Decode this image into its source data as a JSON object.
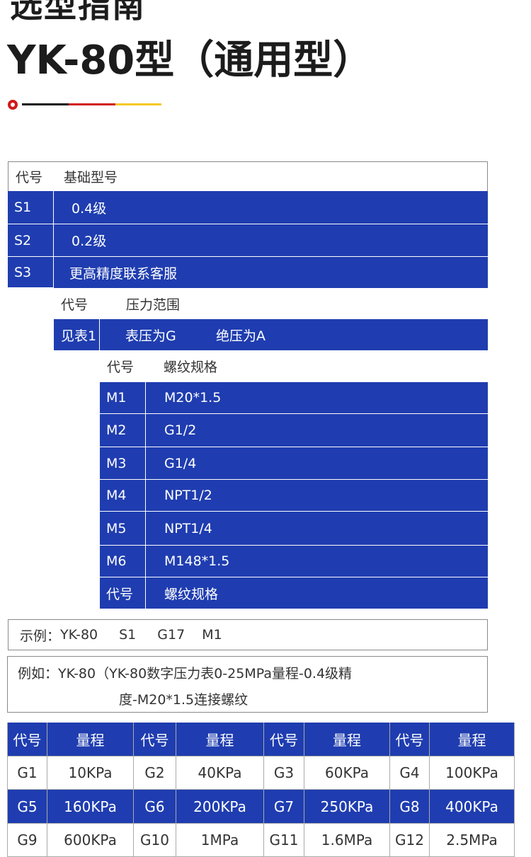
{
  "header": {
    "title_cut": "选型指南",
    "title": "YK-80型（通用型）"
  },
  "accent_colors": {
    "blue": "#1f3db0",
    "red": "#d11a1a",
    "yellow": "#f5c928",
    "black": "#111111"
  },
  "base_model": {
    "header": [
      "代号",
      "基础型号"
    ],
    "rows": [
      [
        "S1",
        "0.4级"
      ],
      [
        "S2",
        "0.2级"
      ],
      [
        "S3",
        "更高精度联系客服"
      ]
    ]
  },
  "pressure": {
    "header": [
      "代号",
      "压力范围"
    ],
    "row": [
      "见表1",
      "表压为G",
      "绝压为A"
    ]
  },
  "thread": {
    "header": [
      "代号",
      "螺纹规格"
    ],
    "rows": [
      [
        "M1",
        "M20*1.5"
      ],
      [
        "M2",
        "G1/2"
      ],
      [
        "M3",
        "G1/4"
      ],
      [
        "M4",
        "NPT1/2"
      ],
      [
        "M5",
        "NPT1/4"
      ],
      [
        "M6",
        "M148*1.5"
      ],
      [
        "代号",
        "螺纹规格"
      ]
    ]
  },
  "example": {
    "label": "示例：",
    "parts": [
      "YK-80",
      "S1",
      "G17",
      "M1"
    ]
  },
  "example2": {
    "line1": "例如：YK-80（YK-80数字压力表0-25MPa量程-0.4级精",
    "line2": "度-M20*1.5连接螺纹"
  },
  "range_table": {
    "header": [
      "代号",
      "量程",
      "代号",
      "量程",
      "代号",
      "量程",
      "代号",
      "量程"
    ],
    "rows": [
      [
        "G1",
        "10KPa",
        "G2",
        "40KPa",
        "G3",
        "60KPa",
        "G4",
        "100KPa"
      ],
      [
        "G5",
        "160KPa",
        "G6",
        "200KPa",
        "G7",
        "250KPa",
        "G8",
        "400KPa"
      ],
      [
        "G9",
        "600KPa",
        "G10",
        "1MPa",
        "G11",
        "1.6MPa",
        "G12",
        "2.5MPa"
      ]
    ]
  }
}
